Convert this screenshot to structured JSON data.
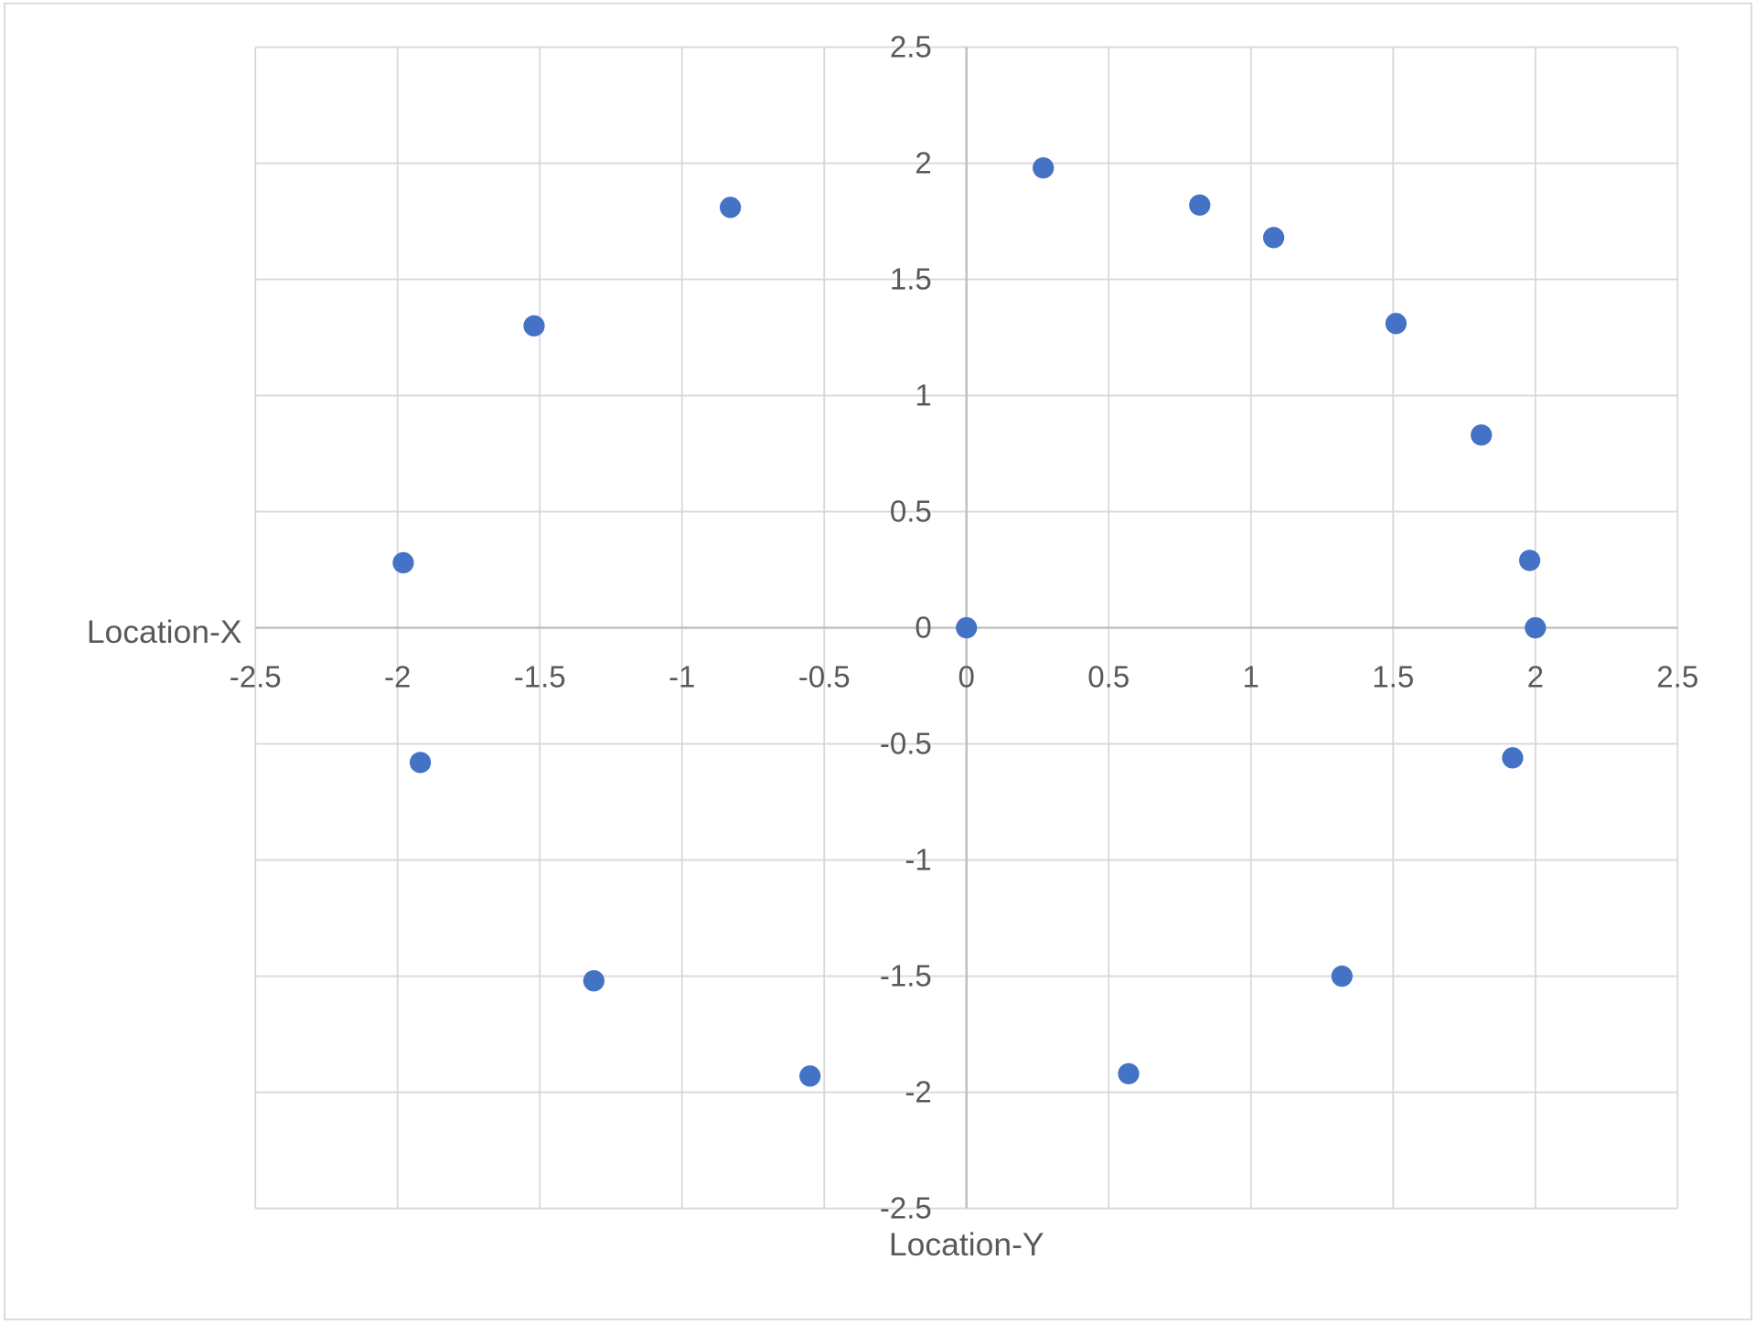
{
  "chart_data": {
    "type": "scatter",
    "title": "",
    "xlabel": "Location-Y",
    "ylabel": "Location-X",
    "xlim": [
      -2.5,
      2.5
    ],
    "ylim": [
      -2.5,
      2.5
    ],
    "x_ticks": [
      "-2.5",
      "-2",
      "-1.5",
      "-1",
      "-0.5",
      "0",
      "0.5",
      "1",
      "1.5",
      "2",
      "2.5"
    ],
    "y_ticks": [
      "2.5",
      "2",
      "1.5",
      "1",
      "0.5",
      "0",
      "-0.5",
      "-1",
      "-1.5",
      "-2",
      "-2.5"
    ],
    "grid": true,
    "legend": "none",
    "marker_color": "#4472C4",
    "points": [
      {
        "x": -0.83,
        "y": 1.81
      },
      {
        "x": 0.27,
        "y": 1.98
      },
      {
        "x": 0.82,
        "y": 1.82
      },
      {
        "x": 1.08,
        "y": 1.68
      },
      {
        "x": 1.51,
        "y": 1.31
      },
      {
        "x": 1.81,
        "y": 0.83
      },
      {
        "x": 1.98,
        "y": 0.29
      },
      {
        "x": 2.0,
        "y": 0.0
      },
      {
        "x": 0.0,
        "y": 0.0
      },
      {
        "x": -1.52,
        "y": 1.3
      },
      {
        "x": -1.98,
        "y": 0.28
      },
      {
        "x": -1.92,
        "y": -0.58
      },
      {
        "x": -1.31,
        "y": -1.52
      },
      {
        "x": -0.55,
        "y": -1.93
      },
      {
        "x": 0.57,
        "y": -1.92
      },
      {
        "x": 1.32,
        "y": -1.5
      },
      {
        "x": 1.92,
        "y": -0.56
      }
    ]
  }
}
